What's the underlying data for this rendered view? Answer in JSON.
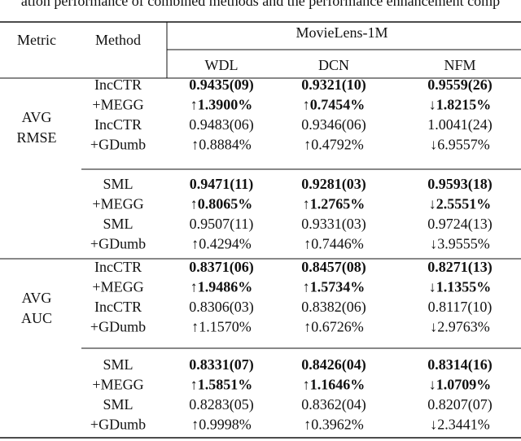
{
  "caption": "ation performance of combined methods and the performance enhancement comp",
  "header": {
    "metric": "Metric",
    "method": "Method",
    "dataset": "MovieLens-1M",
    "columns": [
      "WDL",
      "DCN",
      "NFM"
    ]
  },
  "groups": [
    {
      "metric": [
        "AVG",
        "RMSE"
      ],
      "blocks": [
        {
          "rows": [
            {
              "method": "IncCTR",
              "cells": [
                "0.9435(09)",
                "0.9321(10)",
                "0.9559(26)"
              ]
            },
            {
              "method": "+MEGG",
              "cells": [
                "↑1.3900%",
                "↑0.7454%",
                "↓1.8215%"
              ]
            },
            {
              "method": "IncCTR",
              "cells": [
                "0.9483(06)",
                "0.9346(06)",
                "1.0041(24)"
              ]
            },
            {
              "method": "+GDumb",
              "cells": [
                "↑0.8884%",
                "↑0.4792%",
                "↓6.9557%"
              ]
            }
          ]
        },
        {
          "rows": [
            {
              "method": "SML",
              "cells": [
                "0.9471(11)",
                "0.9281(03)",
                "0.9593(18)"
              ]
            },
            {
              "method": "+MEGG",
              "cells": [
                "↑0.8065%",
                "↑1.2765%",
                "↓2.5551%"
              ]
            },
            {
              "method": "SML",
              "cells": [
                "0.9507(11)",
                "0.9331(03)",
                "0.9724(13)"
              ]
            },
            {
              "method": "+GDumb",
              "cells": [
                "↑0.4294%",
                "↑0.7446%",
                "↓3.9555%"
              ]
            }
          ]
        }
      ]
    },
    {
      "metric": [
        "AVG",
        "AUC"
      ],
      "blocks": [
        {
          "rows": [
            {
              "method": "IncCTR",
              "cells": [
                "0.8371(06)",
                "0.8457(08)",
                "0.8271(13)"
              ]
            },
            {
              "method": "+MEGG",
              "cells": [
                "↑1.9486%",
                "↑1.5734%",
                "↓1.1355%"
              ]
            },
            {
              "method": "IncCTR",
              "cells": [
                "0.8306(03)",
                "0.8382(06)",
                "0.8117(10)"
              ]
            },
            {
              "method": "+GDumb",
              "cells": [
                "↑1.1570%",
                "↑0.6726%",
                "↓2.9763%"
              ]
            }
          ]
        },
        {
          "rows": [
            {
              "method": "SML",
              "cells": [
                "0.8331(07)",
                "0.8426(04)",
                "0.8314(16)"
              ]
            },
            {
              "method": "+MEGG",
              "cells": [
                "↑1.5851%",
                "↑1.1646%",
                "↓1.0709%"
              ]
            },
            {
              "method": "SML",
              "cells": [
                "0.8283(05)",
                "0.8362(04)",
                "0.8207(07)"
              ]
            },
            {
              "method": "+GDumb",
              "cells": [
                "↑0.9998%",
                "↑0.3962%",
                "↓2.3441%"
              ]
            }
          ]
        }
      ]
    }
  ]
}
